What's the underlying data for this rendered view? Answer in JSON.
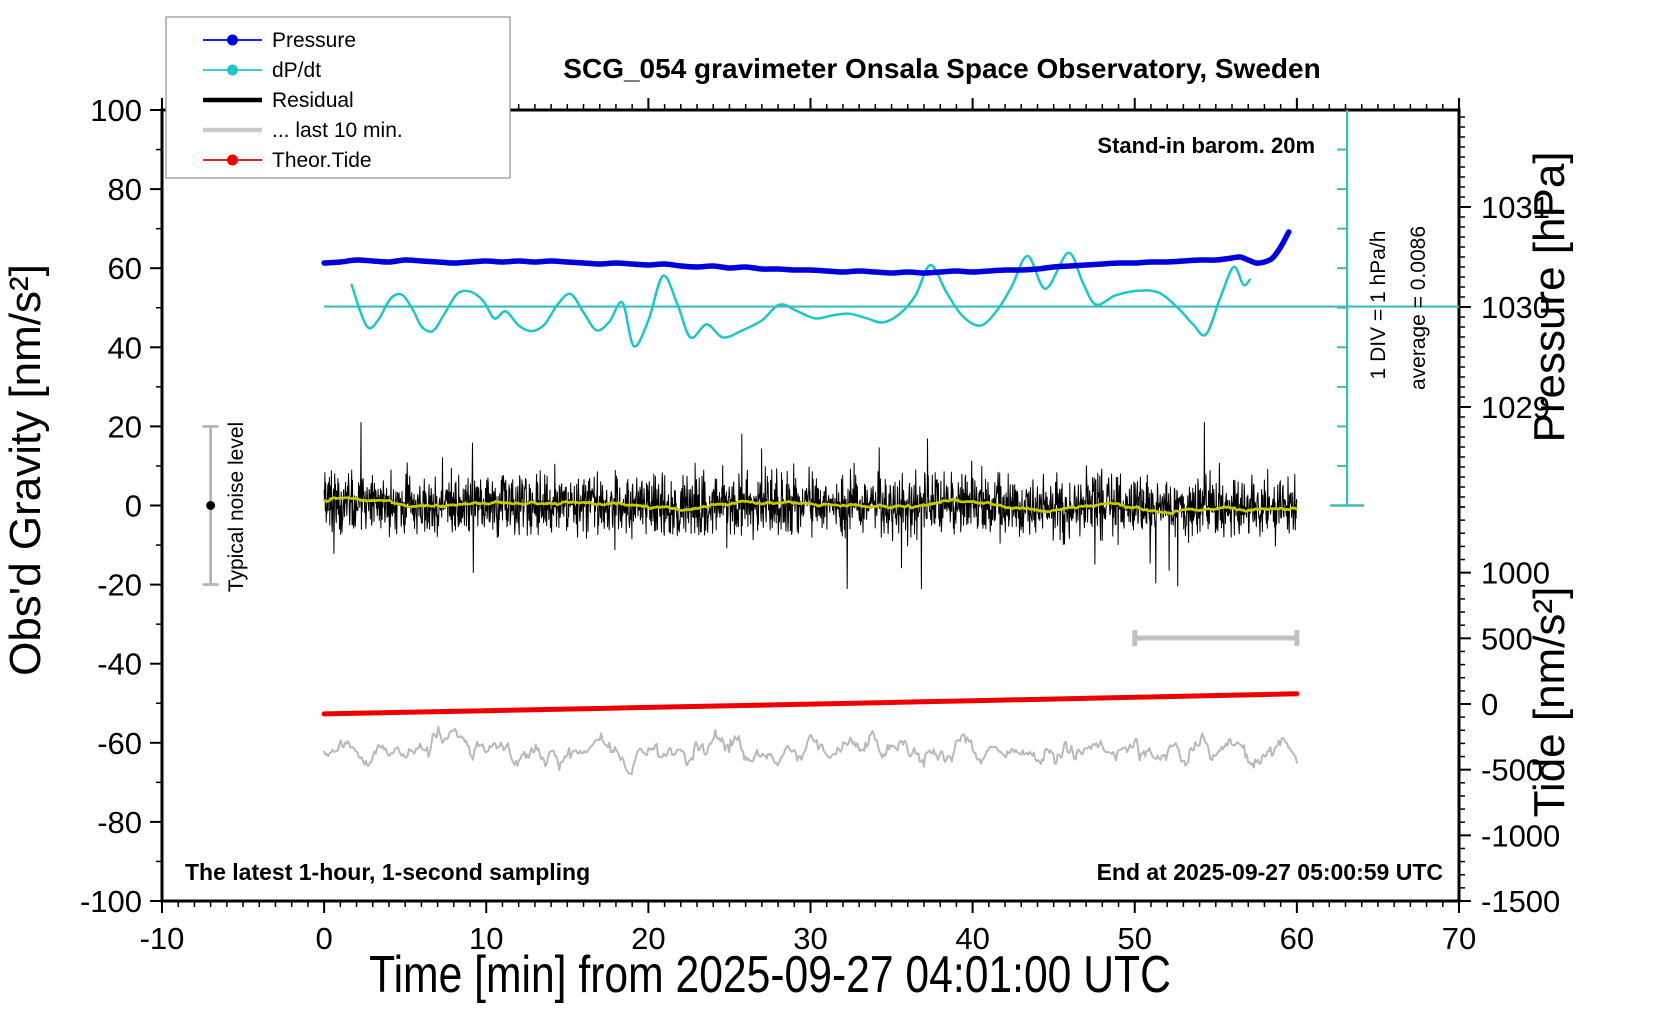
{
  "title": "SCG_054 gravimeter Onsala Space Observatory, Sweden",
  "notes": {
    "stand_in": "Stand-in barom. 20m",
    "div_note": "1 DIV = 1 hPa/h",
    "average_note": "average = 0.0086",
    "noise_label": "Typical noise level",
    "bottom_left": "The latest 1-hour, 1-second sampling",
    "bottom_right": "End at 2025-09-27 05:00:59 UTC"
  },
  "legend": {
    "items": [
      {
        "label": "Pressure",
        "color": "#0000dd",
        "dot": true,
        "thick": false
      },
      {
        "label": "dP/dt",
        "color": "#22c4c4",
        "dot": true,
        "thick": false
      },
      {
        "label": "Residual",
        "color": "#000000",
        "dot": false,
        "thick": true
      },
      {
        "label": "... last 10 min.",
        "color": "#c9c9c9",
        "dot": false,
        "thick": true
      },
      {
        "label": "Theor.Tide",
        "color": "#ee0000",
        "dot": true,
        "thick": false
      }
    ]
  },
  "chart_data": {
    "type": "line",
    "title": "SCG_054 gravimeter Onsala Space Observatory, Sweden",
    "xlabel": "Time [min] from 2025-09-27 04:01:00 UTC",
    "x_axis": {
      "range": [
        -10,
        70
      ],
      "major_ticks": [
        -10,
        0,
        10,
        20,
        30,
        40,
        50,
        60,
        70
      ],
      "minor_step": 1
    },
    "y_left": {
      "label": "Obs'd Gravity [nm/s²]",
      "range": [
        -100,
        100
      ],
      "major_ticks": [
        -100,
        -80,
        -60,
        -40,
        -20,
        0,
        20,
        40,
        60,
        80,
        100
      ],
      "minor_step": 10
    },
    "y_right_pressure": {
      "label": "Pressure [hPa]",
      "range": [
        1028,
        1032
      ],
      "major_ticks": [
        1029,
        1030,
        1031
      ],
      "minor_step": 0.1
    },
    "y_right_tide": {
      "label": "Tide [nm/s²]",
      "range": [
        -1500,
        1500
      ],
      "major_ticks": [
        -1500,
        -1000,
        -500,
        0,
        500,
        1000
      ],
      "minor_step": 100
    },
    "grid": false,
    "legend_position": "top-left",
    "series": {
      "pressure": {
        "name": "Pressure",
        "axis": "pressure_hPa",
        "color": "#0000dd",
        "width": 5.5,
        "points": [
          [
            0,
            1030.44
          ],
          [
            1,
            1030.45
          ],
          [
            2,
            1030.47
          ],
          [
            3,
            1030.46
          ],
          [
            4,
            1030.45
          ],
          [
            5,
            1030.47
          ],
          [
            6,
            1030.46
          ],
          [
            7,
            1030.45
          ],
          [
            8,
            1030.44
          ],
          [
            9,
            1030.45
          ],
          [
            10,
            1030.46
          ],
          [
            11,
            1030.45
          ],
          [
            12,
            1030.46
          ],
          [
            13,
            1030.45
          ],
          [
            14,
            1030.46
          ],
          [
            15,
            1030.45
          ],
          [
            16,
            1030.44
          ],
          [
            17,
            1030.43
          ],
          [
            18,
            1030.44
          ],
          [
            19,
            1030.43
          ],
          [
            20,
            1030.42
          ],
          [
            21,
            1030.43
          ],
          [
            22,
            1030.41
          ],
          [
            23,
            1030.4
          ],
          [
            24,
            1030.41
          ],
          [
            25,
            1030.39
          ],
          [
            26,
            1030.4
          ],
          [
            27,
            1030.38
          ],
          [
            28,
            1030.38
          ],
          [
            29,
            1030.37
          ],
          [
            30,
            1030.37
          ],
          [
            31,
            1030.36
          ],
          [
            32,
            1030.35
          ],
          [
            33,
            1030.36
          ],
          [
            34,
            1030.35
          ],
          [
            35,
            1030.34
          ],
          [
            36,
            1030.35
          ],
          [
            37,
            1030.34
          ],
          [
            38,
            1030.35
          ],
          [
            39,
            1030.36
          ],
          [
            40,
            1030.35
          ],
          [
            41,
            1030.36
          ],
          [
            42,
            1030.37
          ],
          [
            43,
            1030.37
          ],
          [
            44,
            1030.38
          ],
          [
            45,
            1030.4
          ],
          [
            46,
            1030.41
          ],
          [
            47,
            1030.42
          ],
          [
            48,
            1030.43
          ],
          [
            49,
            1030.44
          ],
          [
            50,
            1030.44
          ],
          [
            51,
            1030.45
          ],
          [
            52,
            1030.45
          ],
          [
            53,
            1030.46
          ],
          [
            54,
            1030.47
          ],
          [
            55,
            1030.47
          ],
          [
            56,
            1030.49
          ],
          [
            56.5,
            1030.5
          ],
          [
            57,
            1030.47
          ],
          [
            57.5,
            1030.44
          ],
          [
            58,
            1030.45
          ],
          [
            58.5,
            1030.49
          ],
          [
            59,
            1030.6
          ],
          [
            59.5,
            1030.75
          ]
        ]
      },
      "dpdt": {
        "name": "dP/dt",
        "axis": "hPa_per_hour",
        "color": "#1fc6c6",
        "width": 2.5,
        "average": 0.0086,
        "div_value": "1 DIV = 1 hPa/h",
        "points": [
          [
            1.7,
            0.55
          ],
          [
            2.3,
            -0.2
          ],
          [
            2.8,
            -0.55
          ],
          [
            3.4,
            -0.3
          ],
          [
            4.1,
            0.2
          ],
          [
            4.8,
            0.3
          ],
          [
            5.5,
            -0.1
          ],
          [
            6.0,
            -0.5
          ],
          [
            6.7,
            -0.62
          ],
          [
            7.4,
            -0.2
          ],
          [
            8.2,
            0.32
          ],
          [
            9.0,
            0.38
          ],
          [
            9.8,
            0.15
          ],
          [
            10.5,
            -0.3
          ],
          [
            11.2,
            -0.12
          ],
          [
            12.0,
            -0.48
          ],
          [
            12.8,
            -0.62
          ],
          [
            13.6,
            -0.45
          ],
          [
            14.4,
            0.05
          ],
          [
            15.2,
            0.32
          ],
          [
            16.0,
            -0.15
          ],
          [
            16.8,
            -0.6
          ],
          [
            17.6,
            -0.38
          ],
          [
            18.4,
            0.1
          ],
          [
            19.1,
            -1.0
          ],
          [
            20.0,
            -0.35
          ],
          [
            20.9,
            0.78
          ],
          [
            21.8,
            0.05
          ],
          [
            22.6,
            -0.78
          ],
          [
            23.6,
            -0.45
          ],
          [
            24.6,
            -0.78
          ],
          [
            25.8,
            -0.6
          ],
          [
            27.0,
            -0.35
          ],
          [
            28.1,
            0.05
          ],
          [
            29.2,
            -0.12
          ],
          [
            30.3,
            -0.3
          ],
          [
            31.4,
            -0.22
          ],
          [
            32.4,
            -0.18
          ],
          [
            33.5,
            -0.3
          ],
          [
            34.5,
            -0.4
          ],
          [
            35.6,
            -0.15
          ],
          [
            36.5,
            0.3
          ],
          [
            37.4,
            1.05
          ],
          [
            38.4,
            0.35
          ],
          [
            39.4,
            -0.25
          ],
          [
            40.5,
            -0.48
          ],
          [
            41.5,
            -0.1
          ],
          [
            42.4,
            0.5
          ],
          [
            43.4,
            1.28
          ],
          [
            44.5,
            0.45
          ],
          [
            45.9,
            1.36
          ],
          [
            46.8,
            0.6
          ],
          [
            47.6,
            0.05
          ],
          [
            48.8,
            0.28
          ],
          [
            50.2,
            0.4
          ],
          [
            51.5,
            0.35
          ],
          [
            52.7,
            -0.05
          ],
          [
            53.6,
            -0.45
          ],
          [
            54.4,
            -0.7
          ],
          [
            55.3,
            0.25
          ],
          [
            56.1,
            1.0
          ],
          [
            56.7,
            0.55
          ],
          [
            57.1,
            0.68
          ]
        ]
      },
      "residual": {
        "name": "Residual",
        "axis": "gravity_nm_s2",
        "color": "#000000",
        "width": 1,
        "synth": {
          "start_min": 0,
          "end_min": 60,
          "n": 2400,
          "mean": 0,
          "std": 3.8,
          "spike_prob": 0.018,
          "spike_scale": 2.4,
          "clamp": 21,
          "seed": 12345
        }
      },
      "residual_smoothed": {
        "name": "Residual smoothed",
        "axis": "gravity_nm_s2",
        "color": "#c8c800",
        "width": 2.5,
        "synth": {
          "window": 75,
          "gain": 2.0,
          "clamp": 2.5
        }
      },
      "last10": {
        "name": "... last 10 min.",
        "axis": "gravity_nm_s2",
        "color": "#b9b9b9",
        "width": 2,
        "synth": {
          "start_min": 0,
          "end_min": 60,
          "n": 700,
          "mean": -62,
          "std": 4.6,
          "spike_prob": 0.05,
          "spike_scale": 2.4,
          "clamp_low": -77,
          "clamp_high": -45,
          "smooth_window": 3,
          "seed": 777
        }
      },
      "theor_tide": {
        "name": "Theor.Tide",
        "axis": "tide_nm_s2",
        "color": "#ee0000",
        "width": 5,
        "points": [
          [
            0,
            -75
          ],
          [
            10,
            -51
          ],
          [
            20,
            -26
          ],
          [
            30,
            -1
          ],
          [
            40,
            25
          ],
          [
            50,
            51
          ],
          [
            60,
            78
          ]
        ]
      }
    },
    "annotations": {
      "dpdt_zero_line": {
        "gravity_level": 50.3,
        "from_min": 0,
        "to_frame_right": true,
        "color": "#3bbcbc"
      },
      "dpdt_div_scale": {
        "at_min": 63.1,
        "gravity_from": 0,
        "gravity_to": 100,
        "tick_every_gravity": 10,
        "color": "#3bbcbc"
      },
      "noise_bar": {
        "at_min": -7,
        "gravity_center": 0,
        "gravity_half_range": 20,
        "color": "#b3b3b3",
        "dot_color": "#000000"
      },
      "last10_span_bar": {
        "from_min": 50,
        "to_min": 60,
        "gravity_level": -33.5,
        "color": "#c0c0c0"
      }
    }
  }
}
